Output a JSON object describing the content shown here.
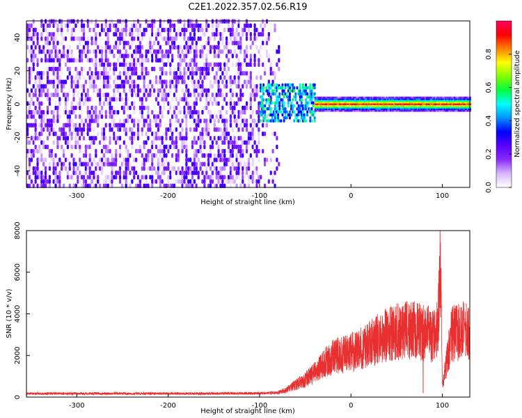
{
  "title": "C2E1.2022.357.02.56.R19",
  "chart_data": [
    {
      "type": "heatmap",
      "title": "",
      "xlabel": "Height of straight line (km)",
      "ylabel": "Frequency (Hz)",
      "xlim": [
        -355,
        130
      ],
      "ylim": [
        -50,
        50
      ],
      "xticks": [
        "-300",
        "-200",
        "-100",
        "0",
        "100"
      ],
      "yticks": [
        "40",
        "20",
        "0",
        "-20",
        "-40"
      ],
      "colorbar": {
        "label": "Normalized spectral amplitude",
        "range": [
          0,
          1
        ],
        "ticks": [
          "0.0",
          "0.2",
          "0.4",
          "0.6",
          "0.8"
        ],
        "colormap": [
          "#ffffff",
          "#d8b8ff",
          "#8c2cff",
          "#5a00ff",
          "#0000ff",
          "#0090ff",
          "#00ffff",
          "#00ff40",
          "#80ff00",
          "#ffff00",
          "#ff8000",
          "#ff0000",
          "#ff0060"
        ]
      },
      "regions": [
        {
          "name": "noise",
          "x_range": [
            -355,
            -80
          ],
          "freq_range": [
            -50,
            50
          ],
          "amplitude": [
            0.0,
            0.3
          ]
        },
        {
          "name": "onset",
          "x_range": [
            -100,
            -40
          ],
          "freq_range": [
            -10,
            12
          ],
          "amplitude": [
            0.3,
            0.6
          ]
        },
        {
          "name": "signal",
          "x_range": [
            -40,
            130
          ],
          "freq_center": 0,
          "freq_halfwidth": 4,
          "center_amplitude": 0.9
        }
      ]
    },
    {
      "type": "line",
      "title": "",
      "xlabel": "Height of straight line (km)",
      "ylabel": "SNR (10 * v/v)",
      "xlim": [
        -355,
        130
      ],
      "ylim": [
        0,
        8000
      ],
      "xticks": [
        "-300",
        "-200",
        "-100",
        "0",
        "100"
      ],
      "yticks": [
        "0",
        "2000",
        "4000",
        "6000",
        "8000"
      ],
      "color": "#e83030",
      "series": [
        {
          "x": [
            -355,
            -300,
            -250,
            -200,
            -150,
            -100,
            -80,
            -70,
            -60,
            -50,
            -40,
            -30,
            -20,
            -10,
            0,
            10,
            20,
            30,
            40,
            50,
            60,
            70,
            80,
            90,
            95,
            98,
            100,
            110,
            120,
            130
          ],
          "y": [
            170,
            170,
            170,
            170,
            170,
            180,
            220,
            350,
            600,
            850,
            1150,
            1600,
            1900,
            2050,
            2150,
            2300,
            2600,
            2800,
            3000,
            3150,
            3200,
            3200,
            3100,
            3000,
            3200,
            6000,
            600,
            3000,
            3200,
            3100
          ]
        }
      ],
      "spikes": [
        {
          "x": 97.5,
          "y": 8000
        },
        {
          "x": 79,
          "y": 200
        }
      ]
    }
  ]
}
